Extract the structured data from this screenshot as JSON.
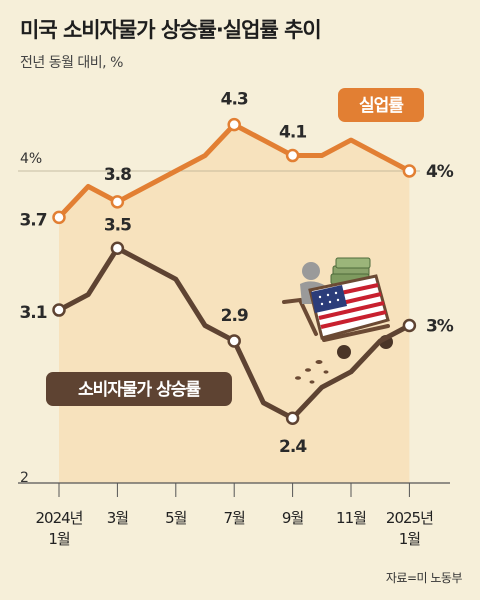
{
  "title": "미국 소비자물가 상승률·실업률 추이",
  "subtitle": "전년 동월 대비, %",
  "source": "자료=미 노동부",
  "colors": {
    "background": "#f6efd9",
    "unemployment": "#e27f33",
    "unemployment_fill": "#f7deb3",
    "cpi": "#5e4332",
    "axis": "#555555"
  },
  "chart_data": {
    "type": "line",
    "x": [
      "2024-01",
      "2024-02",
      "2024-03",
      "2024-04",
      "2024-05",
      "2024-06",
      "2024-07",
      "2024-08",
      "2024-09",
      "2024-10",
      "2024-11",
      "2024-12",
      "2025-01"
    ],
    "x_tick_labels": [
      {
        "index": 0,
        "lines": [
          "2024년",
          "1월"
        ]
      },
      {
        "index": 2,
        "lines": [
          "3월"
        ]
      },
      {
        "index": 4,
        "lines": [
          "5월"
        ]
      },
      {
        "index": 6,
        "lines": [
          "7월"
        ]
      },
      {
        "index": 8,
        "lines": [
          "9월"
        ]
      },
      {
        "index": 10,
        "lines": [
          "11월"
        ]
      },
      {
        "index": 12,
        "lines": [
          "2025년",
          "1월"
        ]
      }
    ],
    "y_ticks": [
      {
        "value": 4,
        "label": "4%"
      },
      {
        "value": 2,
        "label": "2"
      }
    ],
    "grid": false,
    "series": [
      {
        "name": "실업률",
        "values": [
          3.7,
          3.9,
          3.8,
          3.9,
          4.0,
          4.1,
          4.3,
          4.2,
          4.1,
          4.1,
          4.2,
          4.1,
          4.0
        ],
        "labels": [
          {
            "index": 0,
            "text": "3.7"
          },
          {
            "index": 2,
            "text": "3.8"
          },
          {
            "index": 6,
            "text": "4.3"
          },
          {
            "index": 8,
            "text": "4.1"
          },
          {
            "index": 12,
            "text": "4%"
          }
        ]
      },
      {
        "name": "소비자물가 상승률",
        "values": [
          3.1,
          3.2,
          3.5,
          3.4,
          3.3,
          3.0,
          2.9,
          2.5,
          2.4,
          2.6,
          2.7,
          2.9,
          3.0
        ],
        "labels": [
          {
            "index": 0,
            "text": "3.1"
          },
          {
            "index": 2,
            "text": "3.5"
          },
          {
            "index": 6,
            "text": "2.9"
          },
          {
            "index": 8,
            "text": "2.4"
          },
          {
            "index": 12,
            "text": "3%"
          }
        ]
      }
    ]
  }
}
